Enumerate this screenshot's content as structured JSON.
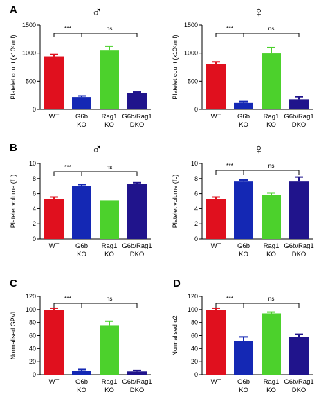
{
  "colors": {
    "wt": "#e0101e",
    "g6b": "#1428b4",
    "rag1": "#4cd12c",
    "dko": "#20148c"
  },
  "chart_data": [
    {
      "type": "bar",
      "panel": "A",
      "symbol": "♂",
      "ylabel": "Platelet count (x10⁶/ml)",
      "ylim": [
        0,
        1500
      ],
      "yticks": [
        "0",
        "500",
        "1000",
        "1500"
      ],
      "categories": [
        [
          "WT"
        ],
        [
          "G6b",
          "KO"
        ],
        [
          "Rag1",
          "KO"
        ],
        [
          "G6b/Rag1",
          "DKO"
        ]
      ],
      "values": [
        940,
        220,
        1055,
        285
      ],
      "errors": [
        35,
        20,
        65,
        22
      ],
      "comparisons": [
        {
          "from": 0,
          "to": 1,
          "label": "***"
        },
        {
          "from": 1,
          "to": 3,
          "label": "ns"
        }
      ]
    },
    {
      "type": "bar",
      "panel": "",
      "symbol": "♀",
      "ylabel": "Platelet count (x10⁶/ml)",
      "ylim": [
        0,
        1500
      ],
      "yticks": [
        "0",
        "500",
        "1000",
        "1500"
      ],
      "categories": [
        [
          "WT"
        ],
        [
          "G6b",
          "KO"
        ],
        [
          "Rag1",
          "KO"
        ],
        [
          "G6b/Rag1",
          "DKO"
        ]
      ],
      "values": [
        810,
        125,
        995,
        180
      ],
      "errors": [
        35,
        15,
        100,
        45
      ],
      "comparisons": [
        {
          "from": 0,
          "to": 1,
          "label": "***"
        },
        {
          "from": 1,
          "to": 3,
          "label": "ns"
        }
      ]
    },
    {
      "type": "bar",
      "panel": "B",
      "symbol": "♂",
      "ylabel": "Platelet volume (fL)",
      "ylim": [
        0,
        10
      ],
      "yticks": [
        "0",
        "2",
        "4",
        "6",
        "8",
        "10"
      ],
      "categories": [
        [
          "WT"
        ],
        [
          "G6b",
          "KO"
        ],
        [
          "Rag1",
          "KO"
        ],
        [
          "G6b/Rag1",
          "DKO"
        ]
      ],
      "values": [
        5.3,
        7.0,
        5.1,
        7.3
      ],
      "errors": [
        0.25,
        0.2,
        0.0,
        0.15
      ],
      "comparisons": [
        {
          "from": 0,
          "to": 1,
          "label": "***"
        },
        {
          "from": 1,
          "to": 3,
          "label": "ns"
        }
      ]
    },
    {
      "type": "bar",
      "panel": "",
      "symbol": "♀",
      "ylabel": "Platelet volume (fL)",
      "ylim": [
        0,
        10
      ],
      "yticks": [
        "0",
        "2",
        "4",
        "6",
        "8",
        "10"
      ],
      "categories": [
        [
          "WT"
        ],
        [
          "G6b",
          "KO"
        ],
        [
          "Rag1",
          "KO"
        ],
        [
          "G6b/Rag1",
          "DKO"
        ]
      ],
      "values": [
        5.3,
        7.6,
        5.8,
        7.6
      ],
      "errors": [
        0.25,
        0.2,
        0.3,
        0.6
      ],
      "comparisons": [
        {
          "from": 0,
          "to": 1,
          "label": "***"
        },
        {
          "from": 1,
          "to": 3,
          "label": "ns"
        }
      ]
    },
    {
      "type": "bar",
      "panel": "C",
      "symbol": "",
      "ylabel": "Normalised GPVI",
      "ylim": [
        0,
        120
      ],
      "yticks": [
        "0",
        "20",
        "40",
        "60",
        "80",
        "100",
        "120"
      ],
      "categories": [
        [
          "WT"
        ],
        [
          "G6b",
          "KO"
        ],
        [
          "Rag1",
          "KO"
        ],
        [
          "G6b/Rag1",
          "DKO"
        ]
      ],
      "values": [
        99,
        6,
        76,
        5
      ],
      "errors": [
        3,
        2,
        6,
        1.5
      ],
      "comparisons": [
        {
          "from": 0,
          "to": 1,
          "label": "***"
        },
        {
          "from": 1,
          "to": 3,
          "label": "ns"
        }
      ]
    },
    {
      "type": "bar",
      "panel": "D",
      "symbol": "",
      "ylabel": "Normalised α2",
      "ylim": [
        0,
        120
      ],
      "yticks": [
        "0",
        "20",
        "40",
        "60",
        "80",
        "100",
        "120"
      ],
      "categories": [
        [
          "WT"
        ],
        [
          "G6b",
          "KO"
        ],
        [
          "Rag1",
          "KO"
        ],
        [
          "G6b/Rag1",
          "DKO"
        ]
      ],
      "values": [
        99,
        52,
        94,
        58
      ],
      "errors": [
        3,
        6,
        2,
        4
      ],
      "comparisons": [
        {
          "from": 0,
          "to": 1,
          "label": "***"
        },
        {
          "from": 1,
          "to": 3,
          "label": "ns"
        }
      ]
    }
  ]
}
